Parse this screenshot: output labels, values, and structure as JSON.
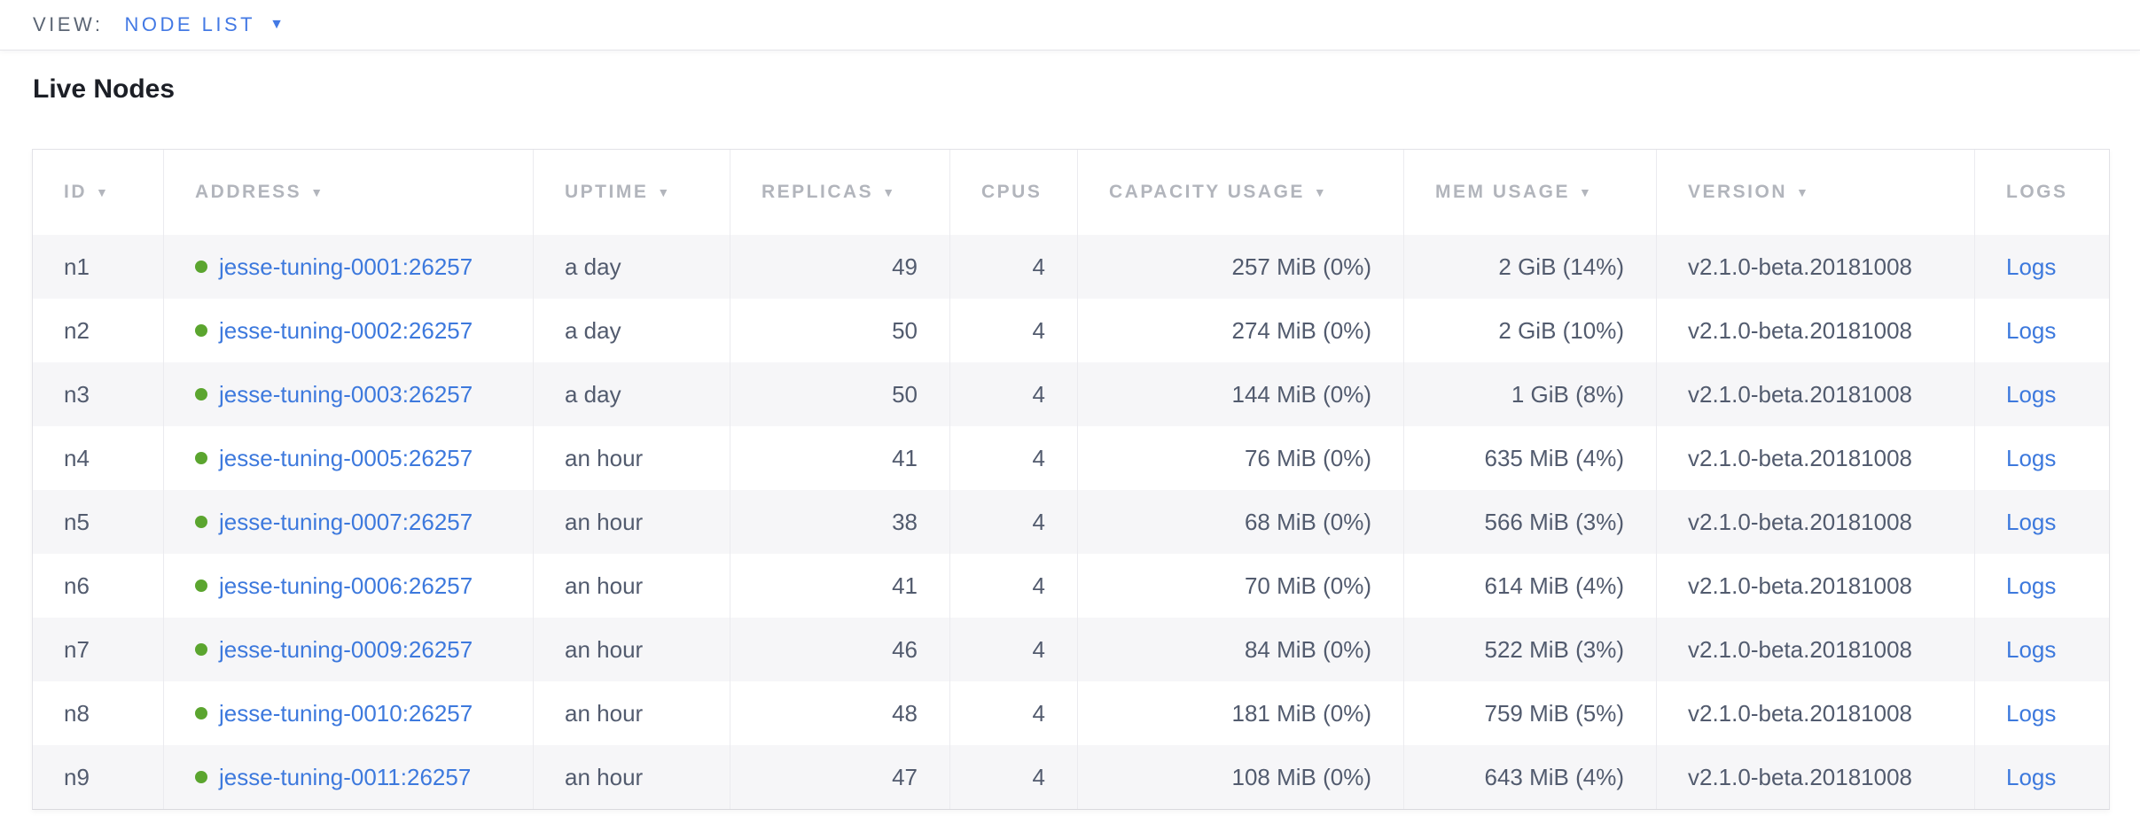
{
  "view_bar": {
    "label": "VIEW:",
    "selected": "NODE LIST"
  },
  "page": {
    "title": "Live Nodes"
  },
  "icons": {
    "sort_desc": "▼",
    "dropdown_caret": "▼",
    "live_status_dot": "●"
  },
  "colors": {
    "accent_blue": "#4379e4",
    "link_blue": "#3d79dd",
    "live_green": "#5ba52f",
    "header_gray": "#b2b5bc",
    "row_alt_background": "#f6f6f8"
  },
  "table": {
    "logs_label": "Logs",
    "columns": [
      {
        "key": "id",
        "label": "ID",
        "sortable": true,
        "align": "left"
      },
      {
        "key": "address",
        "label": "ADDRESS",
        "sortable": true,
        "align": "left"
      },
      {
        "key": "uptime",
        "label": "UPTIME",
        "sortable": true,
        "align": "left"
      },
      {
        "key": "replicas",
        "label": "REPLICAS",
        "sortable": true,
        "align": "right"
      },
      {
        "key": "cpus",
        "label": "CPUS",
        "sortable": false,
        "align": "right"
      },
      {
        "key": "capacity_usage",
        "label": "CAPACITY USAGE",
        "sortable": true,
        "align": "right"
      },
      {
        "key": "mem_usage",
        "label": "MEM USAGE",
        "sortable": true,
        "align": "right"
      },
      {
        "key": "version",
        "label": "VERSION",
        "sortable": true,
        "align": "left"
      },
      {
        "key": "logs",
        "label": "LOGS",
        "sortable": false,
        "align": "left"
      }
    ],
    "rows": [
      {
        "id": "n1",
        "status": "live",
        "address": "jesse-tuning-0001:26257",
        "uptime": "a day",
        "replicas": "49",
        "cpus": "4",
        "capacity_usage": "257 MiB (0%)",
        "mem_usage": "2 GiB (14%)",
        "version": "v2.1.0-beta.20181008"
      },
      {
        "id": "n2",
        "status": "live",
        "address": "jesse-tuning-0002:26257",
        "uptime": "a day",
        "replicas": "50",
        "cpus": "4",
        "capacity_usage": "274 MiB (0%)",
        "mem_usage": "2 GiB (10%)",
        "version": "v2.1.0-beta.20181008"
      },
      {
        "id": "n3",
        "status": "live",
        "address": "jesse-tuning-0003:26257",
        "uptime": "a day",
        "replicas": "50",
        "cpus": "4",
        "capacity_usage": "144 MiB (0%)",
        "mem_usage": "1 GiB (8%)",
        "version": "v2.1.0-beta.20181008"
      },
      {
        "id": "n4",
        "status": "live",
        "address": "jesse-tuning-0005:26257",
        "uptime": "an hour",
        "replicas": "41",
        "cpus": "4",
        "capacity_usage": "76 MiB (0%)",
        "mem_usage": "635 MiB (4%)",
        "version": "v2.1.0-beta.20181008"
      },
      {
        "id": "n5",
        "status": "live",
        "address": "jesse-tuning-0007:26257",
        "uptime": "an hour",
        "replicas": "38",
        "cpus": "4",
        "capacity_usage": "68 MiB (0%)",
        "mem_usage": "566 MiB (3%)",
        "version": "v2.1.0-beta.20181008"
      },
      {
        "id": "n6",
        "status": "live",
        "address": "jesse-tuning-0006:26257",
        "uptime": "an hour",
        "replicas": "41",
        "cpus": "4",
        "capacity_usage": "70 MiB (0%)",
        "mem_usage": "614 MiB (4%)",
        "version": "v2.1.0-beta.20181008"
      },
      {
        "id": "n7",
        "status": "live",
        "address": "jesse-tuning-0009:26257",
        "uptime": "an hour",
        "replicas": "46",
        "cpus": "4",
        "capacity_usage": "84 MiB (0%)",
        "mem_usage": "522 MiB (3%)",
        "version": "v2.1.0-beta.20181008"
      },
      {
        "id": "n8",
        "status": "live",
        "address": "jesse-tuning-0010:26257",
        "uptime": "an hour",
        "replicas": "48",
        "cpus": "4",
        "capacity_usage": "181 MiB (0%)",
        "mem_usage": "759 MiB (5%)",
        "version": "v2.1.0-beta.20181008"
      },
      {
        "id": "n9",
        "status": "live",
        "address": "jesse-tuning-0011:26257",
        "uptime": "an hour",
        "replicas": "47",
        "cpus": "4",
        "capacity_usage": "108 MiB (0%)",
        "mem_usage": "643 MiB (4%)",
        "version": "v2.1.0-beta.20181008"
      }
    ]
  }
}
